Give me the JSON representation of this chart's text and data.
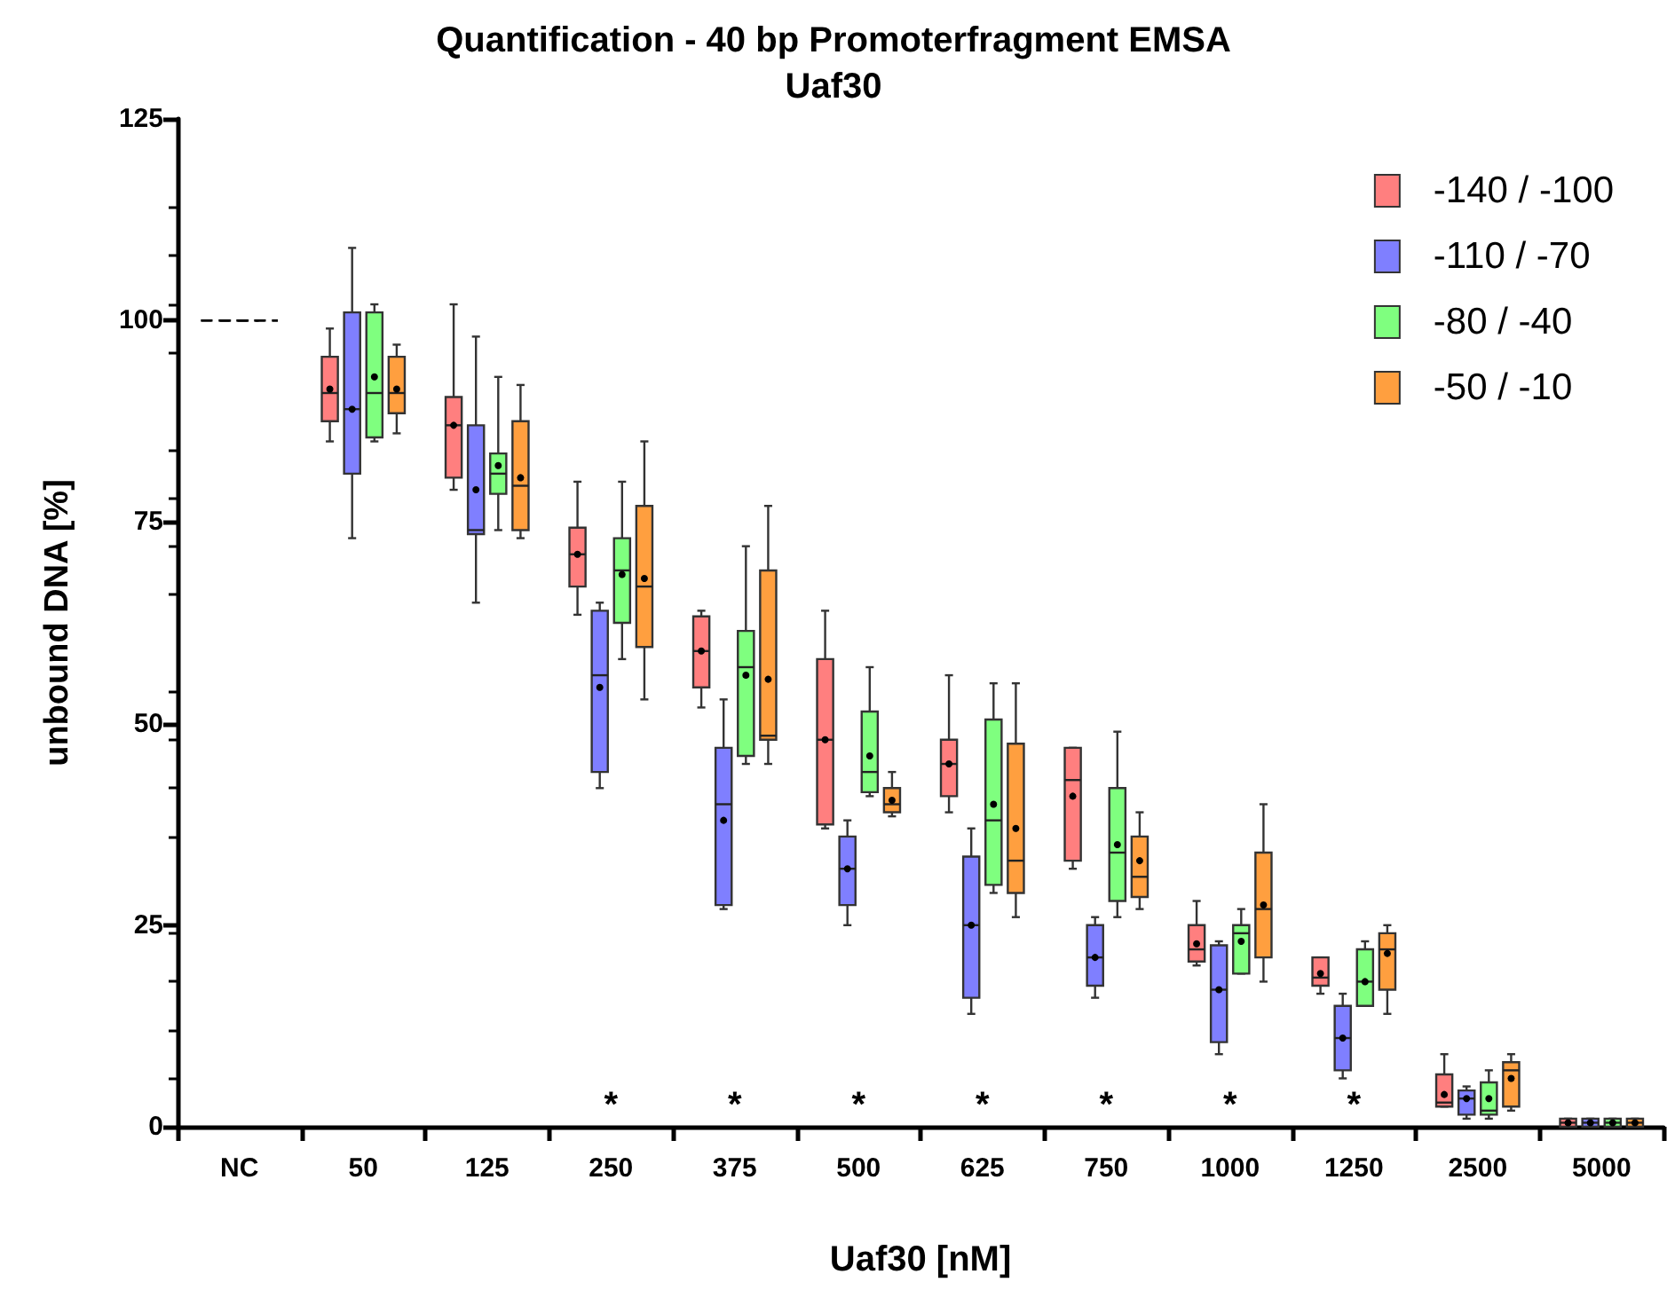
{
  "chart_data": {
    "type": "box",
    "title": "Quantification - 40 bp Promoterfragment EMSA",
    "subtitle": "Uaf30",
    "xlabel": "Uaf30 [nM]",
    "ylabel": "unbound DNA [%]",
    "categories": [
      "NC",
      "50",
      "125",
      "250",
      "375",
      "500",
      "625",
      "750",
      "1000",
      "1250",
      "2500",
      "5000"
    ],
    "ylim": [
      0,
      125
    ],
    "yticks": [
      0,
      25,
      50,
      75,
      100,
      125
    ],
    "grid": false,
    "legend": "top right",
    "series": [
      {
        "color": "#000000",
        "line_style": "dashed",
        "boxes": [
          {
            "low": 100,
            "q1": 100,
            "median": 100,
            "q3": 100,
            "high": 100
          },
          null,
          null,
          null,
          null,
          null,
          null,
          null,
          null,
          null,
          null,
          null
        ]
      },
      {
        "name": "-140 / -100",
        "color": "#ff7f7f",
        "boxes": [
          null,
          {
            "low": 85,
            "q1": 87.5,
            "median": 91,
            "q3": 95.5,
            "high": 99,
            "mean": 91.5
          },
          {
            "low": 79,
            "q1": 80.5,
            "median": 87,
            "q3": 90.5,
            "high": 102,
            "mean": 87
          },
          {
            "low": 63.5,
            "q1": 67,
            "median": 71,
            "q3": 74.3,
            "high": 80,
            "mean": 71
          },
          {
            "low": 52,
            "q1": 54.5,
            "median": 59,
            "q3": 63.3,
            "high": 64,
            "mean": 59
          },
          {
            "low": 37,
            "q1": 37.5,
            "median": 48,
            "q3": 58,
            "high": 64,
            "mean": 48
          },
          {
            "low": 39,
            "q1": 41,
            "median": 45,
            "q3": 48,
            "high": 56,
            "mean": 45
          },
          {
            "low": 32,
            "q1": 33,
            "median": 43,
            "q3": 47,
            "high": 47,
            "mean": 41
          },
          {
            "low": 20,
            "q1": 20.5,
            "median": 22,
            "q3": 25,
            "high": 28,
            "mean": 22.7
          },
          {
            "low": 16.5,
            "q1": 17.5,
            "median": 18.5,
            "q3": 21,
            "high": 21,
            "mean": 19
          },
          {
            "low": 2.5,
            "q1": 2.5,
            "median": 3,
            "q3": 6.5,
            "high": 9,
            "mean": 4
          },
          {
            "low": 0,
            "q1": 0,
            "median": 0.5,
            "q3": 1,
            "high": 1,
            "mean": 0.5
          }
        ]
      },
      {
        "name": "-110 / -70",
        "color": "#7f7fff",
        "boxes": [
          null,
          {
            "low": 73,
            "q1": 81,
            "median": 89,
            "q3": 101,
            "high": 109,
            "mean": 89
          },
          {
            "low": 65,
            "q1": 73.5,
            "median": 74,
            "q3": 87,
            "high": 98,
            "mean": 79
          },
          {
            "low": 42,
            "q1": 44,
            "median": 56,
            "q3": 64,
            "high": 65,
            "mean": 54.5
          },
          {
            "low": 27,
            "q1": 27.5,
            "median": 40,
            "q3": 47,
            "high": 53,
            "mean": 38
          },
          {
            "low": 25,
            "q1": 27.5,
            "median": 32,
            "q3": 36,
            "high": 38,
            "mean": 32
          },
          {
            "low": 14,
            "q1": 16,
            "median": 25,
            "q3": 33.5,
            "high": 37,
            "mean": 25
          },
          {
            "low": 16,
            "q1": 17.5,
            "median": 21,
            "q3": 25,
            "high": 26,
            "mean": 21
          },
          {
            "low": 9,
            "q1": 10.5,
            "median": 17,
            "q3": 22.5,
            "high": 23,
            "mean": 17
          },
          {
            "low": 6,
            "q1": 7,
            "median": 11,
            "q3": 15,
            "high": 16.5,
            "mean": 11
          },
          {
            "low": 1,
            "q1": 1.5,
            "median": 3.5,
            "q3": 4.5,
            "high": 5,
            "mean": 3.5
          },
          {
            "low": 0,
            "q1": 0,
            "median": 0.5,
            "q3": 1,
            "high": 1,
            "mean": 0.5
          }
        ]
      },
      {
        "name": "-80 / -40",
        "color": "#7fff7f",
        "boxes": [
          null,
          {
            "low": 85,
            "q1": 85.5,
            "median": 91,
            "q3": 101,
            "high": 102,
            "mean": 93
          },
          {
            "low": 74,
            "q1": 78.5,
            "median": 81,
            "q3": 83.5,
            "high": 93,
            "mean": 82
          },
          {
            "low": 58,
            "q1": 62.5,
            "median": 69,
            "q3": 73,
            "high": 80,
            "mean": 68.5
          },
          {
            "low": 45,
            "q1": 46,
            "median": 57,
            "q3": 61.5,
            "high": 72,
            "mean": 56
          },
          {
            "low": 41,
            "q1": 41.5,
            "median": 44,
            "q3": 51.5,
            "high": 57,
            "mean": 46
          },
          {
            "low": 29,
            "q1": 30,
            "median": 38,
            "q3": 50.5,
            "high": 55,
            "mean": 40
          },
          {
            "low": 26,
            "q1": 28,
            "median": 34,
            "q3": 42,
            "high": 49,
            "mean": 35
          },
          {
            "low": 19,
            "q1": 19,
            "median": 24,
            "q3": 25,
            "high": 27,
            "mean": 23
          },
          {
            "low": 15,
            "q1": 15,
            "median": 18,
            "q3": 22,
            "high": 23,
            "mean": 18
          },
          {
            "low": 1,
            "q1": 1.5,
            "median": 2,
            "q3": 5.5,
            "high": 7,
            "mean": 3.5
          },
          {
            "low": 0,
            "q1": 0,
            "median": 0.5,
            "q3": 1,
            "high": 1,
            "mean": 0.5
          }
        ]
      },
      {
        "name": "-50 / -10",
        "color": "#ff9f3f",
        "boxes": [
          null,
          {
            "low": 86,
            "q1": 88.5,
            "median": 91,
            "q3": 95.5,
            "high": 97,
            "mean": 91.5
          },
          {
            "low": 73,
            "q1": 74,
            "median": 79.5,
            "q3": 87.5,
            "high": 92,
            "mean": 80.5
          },
          {
            "low": 53,
            "q1": 59.5,
            "median": 67,
            "q3": 77,
            "high": 85,
            "mean": 68
          },
          {
            "low": 45,
            "q1": 48,
            "median": 48.5,
            "q3": 69,
            "high": 77,
            "mean": 55.5
          },
          {
            "low": 38.5,
            "q1": 39,
            "median": 40,
            "q3": 42,
            "high": 44,
            "mean": 40.5
          },
          {
            "low": 26,
            "q1": 29,
            "median": 33,
            "q3": 47.5,
            "high": 55,
            "mean": 37
          },
          {
            "low": 27,
            "q1": 28.5,
            "median": 31,
            "q3": 36,
            "high": 39,
            "mean": 33
          },
          {
            "low": 18,
            "q1": 21,
            "median": 27,
            "q3": 34,
            "high": 40,
            "mean": 27.5
          },
          {
            "low": 14,
            "q1": 17,
            "median": 22,
            "q3": 24,
            "high": 25,
            "mean": 21.5
          },
          {
            "low": 2,
            "q1": 2.5,
            "median": 7,
            "q3": 8,
            "high": 9,
            "mean": 6
          },
          {
            "low": 0,
            "q1": 0,
            "median": 0.5,
            "q3": 1,
            "high": 1,
            "mean": 0.5
          }
        ]
      }
    ],
    "annotations": [
      "*",
      "*",
      "*",
      "*",
      "*",
      "*",
      "*"
    ]
  }
}
